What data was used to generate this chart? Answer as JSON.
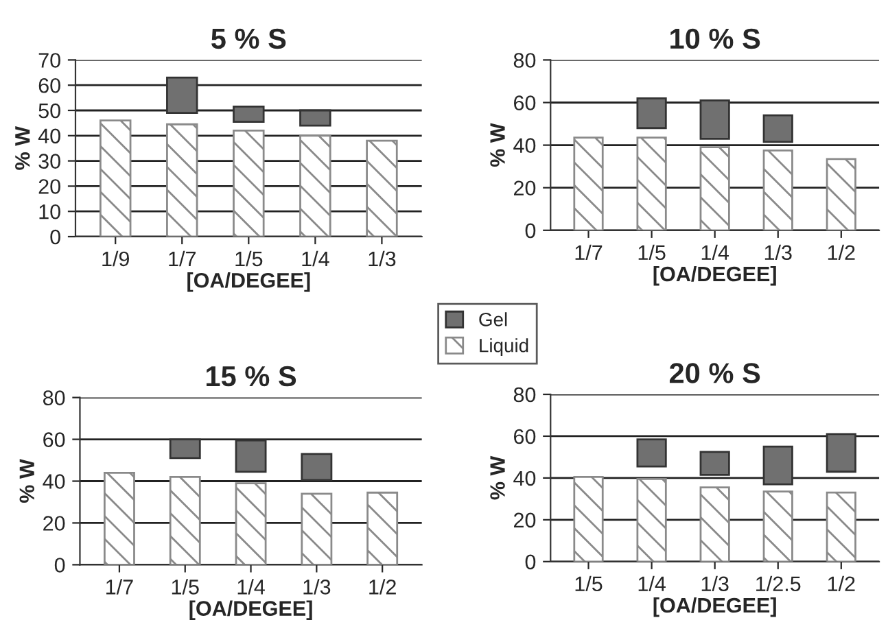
{
  "chart_data": [
    {
      "type": "bar",
      "title": "5 % S",
      "xlabel": "[OA/DEGEE]",
      "ylabel": "% W",
      "categories": [
        "1/9",
        "1/7",
        "1/5",
        "1/4",
        "1/3"
      ],
      "ylim": [
        0,
        70
      ],
      "yticks": [
        0,
        10,
        20,
        30,
        40,
        50,
        60,
        70
      ],
      "grid": "y",
      "legend": "bottom right",
      "series": [
        {
          "name": "Gel",
          "color": "#707070",
          "values": [
            null,
            14,
            6,
            6,
            null
          ],
          "base": [
            null,
            49,
            45.5,
            44,
            null
          ]
        },
        {
          "name": "Liquid",
          "color": "#8a8a8a",
          "values": [
            46,
            44.5,
            42,
            40,
            38
          ]
        }
      ]
    },
    {
      "type": "bar",
      "title": "10 % S",
      "xlabel": "[OA/DEGEE]",
      "ylabel": "% W",
      "categories": [
        "1/7",
        "1/5",
        "1/4",
        "1/3",
        "1/2"
      ],
      "ylim": [
        0,
        80
      ],
      "yticks": [
        0,
        20,
        40,
        60,
        80
      ],
      "grid": "y",
      "series": [
        {
          "name": "Gel",
          "color": "#707070",
          "values": [
            null,
            14,
            18,
            12.5,
            null
          ],
          "base": [
            null,
            48,
            43,
            41.5,
            null
          ]
        },
        {
          "name": "Liquid",
          "color": "#8a8a8a",
          "values": [
            43.5,
            43.5,
            39,
            37.5,
            33.5
          ]
        }
      ]
    },
    {
      "type": "bar",
      "title": "15 % S",
      "xlabel": "[OA/DEGEE]",
      "ylabel": "% W",
      "categories": [
        "1/7",
        "1/5",
        "1/4",
        "1/3",
        "1/2"
      ],
      "ylim": [
        0,
        80
      ],
      "yticks": [
        0,
        20,
        40,
        60,
        80
      ],
      "grid": "y",
      "series": [
        {
          "name": "Gel",
          "color": "#707070",
          "values": [
            null,
            9,
            15,
            12.5,
            null
          ],
          "base": [
            null,
            51,
            44.5,
            40.5,
            null
          ]
        },
        {
          "name": "Liquid",
          "color": "#8a8a8a",
          "values": [
            44,
            42,
            39,
            34,
            34.5
          ]
        }
      ]
    },
    {
      "type": "bar",
      "title": "20 % S",
      "xlabel": "[OA/DEGEE]",
      "ylabel": "% W",
      "categories": [
        "1/5",
        "1/4",
        "1/3",
        "1/2.5",
        "1/2"
      ],
      "ylim": [
        0,
        80
      ],
      "yticks": [
        0,
        20,
        40,
        60,
        80
      ],
      "grid": "y",
      "series": [
        {
          "name": "Gel",
          "color": "#707070",
          "values": [
            null,
            13,
            11,
            18,
            18
          ],
          "base": [
            null,
            45.5,
            41.5,
            37,
            43
          ]
        },
        {
          "name": "Liquid",
          "color": "#8a8a8a",
          "values": [
            40.5,
            39.5,
            35.5,
            33.5,
            33
          ]
        }
      ]
    }
  ]
}
